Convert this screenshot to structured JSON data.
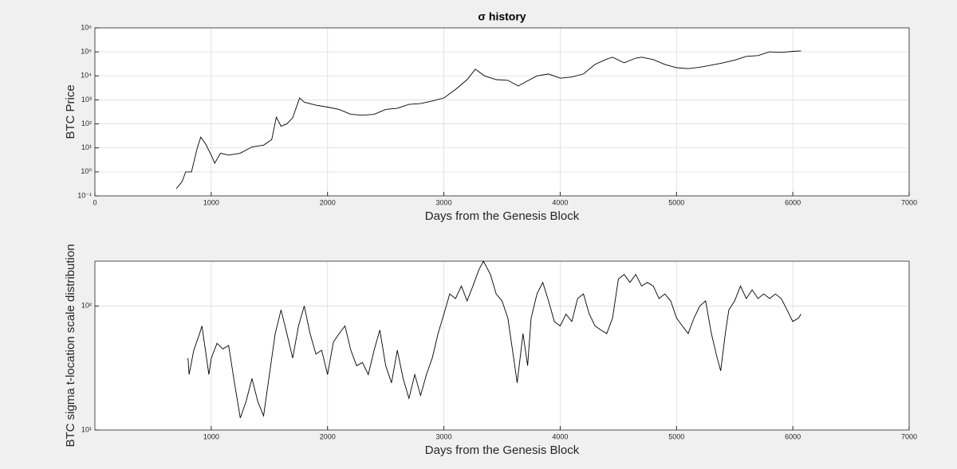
{
  "chart_data": [
    {
      "type": "line",
      "title": "σ history",
      "x_label": "Days from the Genesis Block",
      "y_label": "BTC Price",
      "xlim": [
        0,
        7000
      ],
      "xticks": [
        0,
        1000,
        2000,
        3000,
        4000,
        5000,
        6000,
        7000
      ],
      "ylim": [
        0.1,
        1000000
      ],
      "yscale": "log",
      "grid": true,
      "yticks": [
        {
          "value": 0.1,
          "label": "10⁻¹"
        },
        {
          "value": 1,
          "label": "10⁰"
        },
        {
          "value": 10,
          "label": "10¹"
        },
        {
          "value": 100,
          "label": "10²"
        },
        {
          "value": 1000,
          "label": "10³"
        },
        {
          "value": 10000,
          "label": "10⁴"
        },
        {
          "value": 100000,
          "label": "10⁵"
        },
        {
          "value": 1000000,
          "label": "10⁶"
        }
      ],
      "x": [
        700,
        750,
        780,
        830,
        880,
        910,
        950,
        1000,
        1030,
        1080,
        1150,
        1250,
        1350,
        1450,
        1520,
        1560,
        1600,
        1650,
        1700,
        1760,
        1800,
        1900,
        2000,
        2100,
        2200,
        2300,
        2400,
        2500,
        2600,
        2700,
        2800,
        2900,
        3000,
        3100,
        3200,
        3270,
        3350,
        3450,
        3550,
        3640,
        3700,
        3800,
        3900,
        4000,
        4100,
        4200,
        4300,
        4400,
        4450,
        4550,
        4650,
        4700,
        4800,
        4900,
        5000,
        5100,
        5200,
        5300,
        5400,
        5500,
        5600,
        5700,
        5800,
        5900,
        6000,
        6070
      ],
      "series": [
        {
          "color": "#000000",
          "values": [
            0.2,
            0.4,
            1,
            1,
            10,
            28,
            15,
            5,
            2.3,
            6,
            5,
            6,
            11,
            13,
            22,
            190,
            80,
            100,
            180,
            1200,
            800,
            600,
            500,
            400,
            250,
            230,
            250,
            400,
            450,
            650,
            700,
            900,
            1200,
            2700,
            7000,
            19000,
            10000,
            7000,
            6500,
            3800,
            5500,
            10000,
            12000,
            8000,
            9000,
            12000,
            30000,
            50000,
            60000,
            35000,
            55000,
            60000,
            48000,
            30000,
            22000,
            20000,
            23000,
            28000,
            35000,
            45000,
            65000,
            70000,
            100000,
            95000,
            105000,
            110000
          ]
        }
      ]
    },
    {
      "type": "line",
      "x_label": "Days from the Genesis Block",
      "y_label": "BTC sigma t-location scale distribution",
      "xlim": [
        0,
        7000
      ],
      "xticks": [
        1000,
        2000,
        3000,
        4000,
        5000,
        6000,
        7000
      ],
      "ylim": [
        10,
        230
      ],
      "yscale": "log",
      "grid": true,
      "yticks": [
        {
          "value": 10,
          "label": "10¹"
        },
        {
          "value": 100,
          "label": "10²"
        }
      ],
      "x": [
        800,
        810,
        850,
        900,
        920,
        950,
        980,
        1000,
        1050,
        1100,
        1150,
        1200,
        1250,
        1300,
        1350,
        1400,
        1450,
        1500,
        1550,
        1600,
        1650,
        1700,
        1750,
        1800,
        1850,
        1900,
        1950,
        2000,
        2050,
        2100,
        2150,
        2200,
        2250,
        2300,
        2350,
        2400,
        2450,
        2500,
        2550,
        2600,
        2650,
        2700,
        2750,
        2800,
        2850,
        2900,
        2950,
        3000,
        3050,
        3100,
        3150,
        3200,
        3250,
        3300,
        3340,
        3400,
        3450,
        3500,
        3550,
        3600,
        3630,
        3680,
        3720,
        3750,
        3800,
        3850,
        3900,
        3950,
        4000,
        4050,
        4100,
        4150,
        4200,
        4250,
        4300,
        4350,
        4400,
        4450,
        4500,
        4550,
        4600,
        4650,
        4700,
        4750,
        4800,
        4850,
        4900,
        4950,
        5000,
        5050,
        5100,
        5150,
        5200,
        5250,
        5300,
        5350,
        5380,
        5420,
        5450,
        5500,
        5550,
        5600,
        5650,
        5700,
        5750,
        5800,
        5850,
        5900,
        5950,
        6000,
        6050,
        6070
      ],
      "series": [
        {
          "color": "#000000",
          "values": [
            38,
            28,
            44,
            60,
            69,
            44,
            28,
            38,
            50,
            45,
            48,
            24,
            12.5,
            17,
            26,
            17,
            13,
            28,
            60,
            93,
            60,
            38,
            69,
            100,
            60,
            41,
            44,
            28,
            51,
            60,
            69,
            44,
            33,
            35,
            28,
            44,
            64,
            33,
            24,
            44,
            26,
            18,
            28,
            19,
            28,
            38,
            60,
            86,
            125,
            115,
            145,
            110,
            145,
            195,
            230,
            180,
            125,
            110,
            80,
            38,
            24,
            60,
            33,
            80,
            125,
            155,
            110,
            75,
            69,
            86,
            75,
            115,
            125,
            86,
            69,
            64,
            60,
            80,
            165,
            180,
            155,
            180,
            145,
            155,
            145,
            115,
            125,
            110,
            80,
            69,
            60,
            80,
            100,
            110,
            60,
            38,
            30,
            60,
            93,
            110,
            145,
            115,
            135,
            115,
            125,
            115,
            125,
            115,
            93,
            75,
            80,
            86
          ]
        }
      ]
    }
  ]
}
